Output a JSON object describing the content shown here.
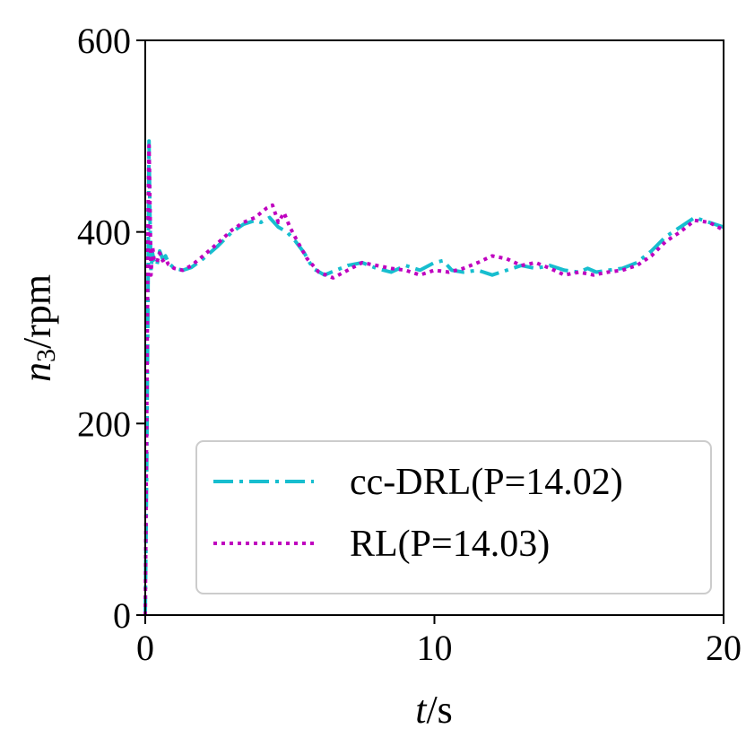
{
  "chart_data": {
    "type": "line",
    "xlabel": "t/s",
    "ylabel": "n3/rpm",
    "xlim": [
      0,
      20
    ],
    "ylim": [
      0,
      600
    ],
    "xticks": [
      "0",
      "10",
      "20"
    ],
    "yticks": [
      "0",
      "200",
      "400",
      "600"
    ],
    "grid": false,
    "legend_position": "lower-right",
    "series": [
      {
        "name": "cc-DRL(P=14.02)",
        "color": "#17becf",
        "style": "dashdot",
        "x": [
          0,
          0.05,
          0.1,
          0.13,
          0.16,
          0.2,
          0.25,
          0.3,
          0.4,
          0.5,
          0.6,
          0.7,
          0.8,
          1.0,
          1.3,
          1.6,
          2.0,
          2.5,
          3.0,
          3.4,
          3.8,
          4.0,
          4.3,
          4.6,
          4.9,
          5.2,
          5.5,
          5.8,
          6.2,
          6.6,
          7.0,
          7.5,
          8.0,
          8.5,
          9.0,
          9.5,
          10.0,
          10.3,
          10.6,
          11.0,
          11.5,
          12.0,
          12.5,
          13.0,
          13.5,
          14.0,
          14.5,
          15.0,
          15.3,
          15.6,
          16.0,
          16.5,
          17.0,
          17.5,
          18.0,
          18.5,
          19.0,
          19.5,
          20.0
        ],
        "y": [
          0,
          150,
          350,
          495,
          420,
          360,
          378,
          370,
          365,
          380,
          372,
          375,
          368,
          362,
          360,
          363,
          372,
          385,
          400,
          408,
          412,
          410,
          415,
          405,
          400,
          390,
          378,
          362,
          355,
          360,
          365,
          368,
          362,
          358,
          365,
          360,
          368,
          370,
          360,
          358,
          360,
          355,
          360,
          365,
          362,
          365,
          360,
          358,
          362,
          358,
          360,
          362,
          368,
          380,
          395,
          405,
          415,
          410,
          405
        ]
      },
      {
        "name": "RL(P=14.03)",
        "color": "#bf00bf",
        "style": "dotted",
        "x": [
          0,
          0.05,
          0.1,
          0.13,
          0.16,
          0.2,
          0.25,
          0.3,
          0.4,
          0.5,
          0.6,
          0.7,
          0.8,
          1.0,
          1.3,
          1.6,
          2.0,
          2.5,
          3.0,
          3.4,
          3.8,
          4.0,
          4.2,
          4.4,
          4.6,
          4.8,
          5.0,
          5.3,
          5.6,
          6.0,
          6.5,
          7.0,
          7.5,
          8.0,
          8.5,
          9.0,
          9.5,
          10.0,
          10.5,
          11.0,
          11.5,
          12.0,
          12.5,
          13.0,
          13.5,
          14.0,
          14.5,
          15.0,
          15.5,
          16.0,
          16.5,
          17.0,
          17.5,
          18.0,
          18.5,
          19.0,
          19.5,
          20.0
        ],
        "y": [
          0,
          200,
          420,
          490,
          430,
          355,
          385,
          372,
          368,
          378,
          370,
          372,
          366,
          362,
          360,
          365,
          375,
          388,
          402,
          410,
          415,
          420,
          425,
          428,
          410,
          420,
          405,
          388,
          372,
          358,
          352,
          360,
          368,
          365,
          362,
          360,
          355,
          360,
          358,
          362,
          368,
          375,
          372,
          365,
          368,
          362,
          355,
          358,
          355,
          358,
          360,
          365,
          375,
          390,
          400,
          412,
          410,
          402
        ]
      }
    ]
  }
}
